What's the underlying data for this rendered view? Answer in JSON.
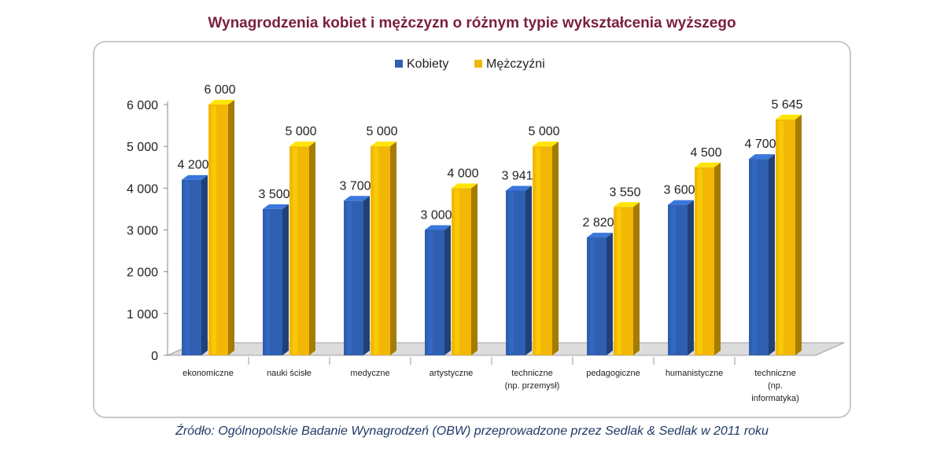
{
  "chart_data": {
    "type": "bar",
    "title": "Wynagrodzenia kobiet i mężczyzn o różnym typie wykształcenia wyższego",
    "categories": [
      [
        "ekonomiczne"
      ],
      [
        "nauki ścisłe"
      ],
      [
        "medyczne"
      ],
      [
        "artystyczne"
      ],
      [
        "techniczne",
        "(np. przemysł)"
      ],
      [
        "pedagogiczne"
      ],
      [
        "humanistyczne"
      ],
      [
        "techniczne",
        "(np.",
        "informatyka)"
      ]
    ],
    "series": [
      {
        "name": "Kobiety",
        "color": "#2f5fb0",
        "values": [
          4200,
          3500,
          3700,
          3000,
          3941,
          2820,
          3600,
          4700
        ],
        "labels": [
          "4 200",
          "3 500",
          "3 700",
          "3 000",
          "3 941",
          "2 820",
          "3 600",
          "4 700"
        ]
      },
      {
        "name": "Mężczyźni",
        "color": "#f2b705",
        "values": [
          6000,
          5000,
          5000,
          4000,
          5000,
          3550,
          4500,
          5645
        ],
        "labels": [
          "6 000",
          "5 000",
          "5 000",
          "4 000",
          "5 000",
          "3 550",
          "4 500",
          "5 645"
        ]
      }
    ],
    "ylim": [
      0,
      6000
    ],
    "yticks": [
      0,
      1000,
      2000,
      3000,
      4000,
      5000,
      6000
    ],
    "ytick_labels": [
      "0",
      "1 000",
      "2 000",
      "3 000",
      "4 000",
      "5 000",
      "6 000"
    ],
    "legend_position": "top",
    "grid": false,
    "xlabel": "",
    "ylabel": ""
  },
  "source_note": "Źródło: Ogólnopolskie Badanie Wynagrodzeń (OBW) przeprowadzone przez Sedlak & Sedlak w 2011 roku"
}
